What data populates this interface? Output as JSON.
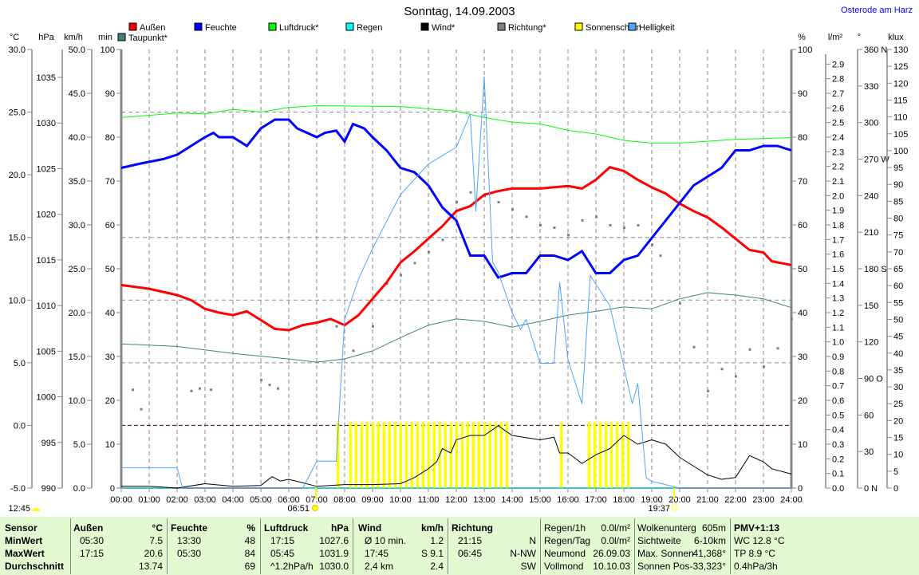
{
  "header": {
    "title": "Sonntag, 14.09.2003",
    "location": "Osterode am Harz"
  },
  "legend": [
    {
      "label": "Außen",
      "color": "#ff0000"
    },
    {
      "label": "Feuchte",
      "color": "#0000ff"
    },
    {
      "label": "Luftdruck*",
      "color": "#00ff00"
    },
    {
      "label": "Regen",
      "color": "#00ffff"
    },
    {
      "label": "Wind*",
      "color": "#000000"
    },
    {
      "label": "Richtung*",
      "color": "#808080"
    },
    {
      "label": "Sonnenschein",
      "color": "#ffff00"
    },
    {
      "label": "Helligkeit",
      "color": "#4da6ff"
    },
    {
      "label": "Taupunkt*",
      "color": "#408080"
    }
  ],
  "markers": {
    "moon": "12:45",
    "sunrise": "06:51",
    "sunset": "19:37",
    "moon_icon": "half-moon-icon",
    "sun_icon": "sun-icon"
  },
  "chart_data": {
    "type": "line",
    "title": "Sonntag, 14.09.2003",
    "xlabel": "",
    "xlim": [
      0,
      24
    ],
    "x_ticks": [
      "00:00",
      "01:00",
      "02:00",
      "03:00",
      "04:00",
      "05:00",
      "06:00",
      "07:00",
      "08:00",
      "09:00",
      "10:00",
      "11:00",
      "12:00",
      "13:00",
      "14:00",
      "15:00",
      "16:00",
      "17:00",
      "18:00",
      "19:00",
      "20:00",
      "21:00",
      "22:00",
      "23:00",
      "24:00"
    ],
    "grid": true,
    "axes": {
      "temp": {
        "unit": "°C",
        "range": [
          -5,
          30
        ],
        "ticks": [
          "30.0",
          "25.0",
          "20.0",
          "15.0",
          "10.0",
          "5.0",
          "0.0",
          "-5.0"
        ],
        "values": [
          30,
          25,
          20,
          15,
          10,
          5,
          0,
          -5
        ]
      },
      "pressure": {
        "unit": "hPa",
        "range": [
          990,
          1038.06
        ],
        "ticks": [
          "1035",
          "1030",
          "1025",
          "1020",
          "1015",
          "1010",
          "1005",
          "1000",
          "995",
          "990"
        ],
        "values": [
          1035,
          1030,
          1025,
          1020,
          1015,
          1010,
          1005,
          1000,
          995,
          990
        ]
      },
      "wind": {
        "unit": "km/h",
        "range": [
          0,
          50
        ],
        "ticks": [
          "50.0",
          "45.0",
          "40.0",
          "35.0",
          "30.0",
          "25.0",
          "20.0",
          "15.0",
          "10.0",
          "5.0",
          "0.0"
        ],
        "values": [
          50,
          45,
          40,
          35,
          30,
          25,
          20,
          15,
          10,
          5,
          0
        ]
      },
      "sun": {
        "unit": "min",
        "range": [
          0,
          100
        ],
        "ticks": [
          "100",
          "90",
          "80",
          "70",
          "60",
          "50",
          "40",
          "30",
          "20",
          "10",
          "0"
        ],
        "values": [
          100,
          90,
          80,
          70,
          60,
          50,
          40,
          30,
          20,
          10,
          0
        ]
      },
      "humidity": {
        "unit": "%",
        "range": [
          0,
          100
        ],
        "ticks": [
          "100",
          "90",
          "80",
          "70",
          "60",
          "50",
          "40",
          "30",
          "20",
          "10",
          "0"
        ],
        "values": [
          100,
          90,
          80,
          70,
          60,
          50,
          40,
          30,
          20,
          10,
          0
        ]
      },
      "rain": {
        "unit": "l/m²",
        "range": [
          0,
          3
        ],
        "ticks": [
          "2.9",
          "2.8",
          "2.7",
          "2.6",
          "2.5",
          "2.4",
          "2.3",
          "2.2",
          "2.1",
          "2.0",
          "1.9",
          "1.8",
          "1.7",
          "1.6",
          "1.5",
          "1.4",
          "1.3",
          "1.2",
          "1.1",
          "1.0",
          "0.9",
          "0.8",
          "0.7",
          "0.6",
          "0.5",
          "0.4",
          "0.3",
          "0.2",
          "0.1",
          "0.0"
        ],
        "values": [
          2.9,
          2.8,
          2.7,
          2.6,
          2.5,
          2.4,
          2.3,
          2.2,
          2.1,
          2.0,
          1.9,
          1.8,
          1.7,
          1.6,
          1.5,
          1.4,
          1.3,
          1.2,
          1.1,
          1.0,
          0.9,
          0.8,
          0.7,
          0.6,
          0.5,
          0.4,
          0.3,
          0.2,
          0.1,
          0
        ]
      },
      "direction": {
        "unit": "°",
        "range": [
          0,
          360
        ],
        "ticks": [
          "360 N",
          "330",
          "300",
          "270 W",
          "240",
          "210",
          "180 S",
          "150",
          "120",
          "90  O",
          "60",
          "30",
          "0    N"
        ],
        "values": [
          360,
          330,
          300,
          270,
          240,
          210,
          180,
          150,
          120,
          90,
          60,
          30,
          0
        ]
      },
      "light": {
        "unit": "klux",
        "range": [
          0,
          130
        ],
        "ticks": [
          "130",
          "125",
          "120",
          "115",
          "110",
          "105",
          "100",
          "95",
          "90",
          "85",
          "80",
          "75",
          "70",
          "65",
          "60",
          "55",
          "50",
          "45",
          "40",
          "35",
          "30",
          "25",
          "20",
          "15",
          "10",
          "5",
          "0"
        ],
        "values": [
          130,
          125,
          120,
          115,
          110,
          105,
          100,
          95,
          90,
          85,
          80,
          75,
          70,
          65,
          60,
          55,
          50,
          45,
          40,
          35,
          30,
          25,
          20,
          15,
          10,
          5,
          0
        ]
      }
    },
    "series": [
      {
        "name": "Außen",
        "axis": "temp",
        "color": "#ff0000",
        "x": [
          0,
          1,
          2,
          2.5,
          3,
          3.5,
          4,
          4.5,
          5,
          5.5,
          6,
          6.5,
          7,
          7.5,
          8,
          8.5,
          9,
          9.5,
          10,
          10.5,
          11,
          11.5,
          12,
          12.5,
          13,
          13.5,
          14,
          15,
          16,
          16.5,
          17,
          17.5,
          18,
          18.5,
          19,
          19.5,
          20,
          20.5,
          21,
          21.5,
          22,
          22.5,
          23,
          23.3,
          24
        ],
        "values": [
          11.2,
          10.9,
          10.4,
          10.0,
          9.3,
          9.0,
          8.8,
          9.1,
          8.4,
          7.7,
          7.6,
          8.0,
          8.2,
          8.5,
          8.0,
          8.8,
          10.1,
          11.4,
          13.0,
          13.9,
          14.9,
          15.9,
          17.1,
          17.5,
          18.4,
          18.7,
          18.9,
          18.9,
          19.1,
          18.9,
          19.6,
          20.6,
          20.3,
          19.6,
          19.0,
          18.5,
          17.7,
          17.1,
          16.6,
          15.8,
          14.9,
          14.0,
          13.8,
          13.1,
          12.8
        ]
      },
      {
        "name": "Feuchte",
        "axis": "humidity",
        "color": "#0000ff",
        "x": [
          0,
          0.7,
          1.5,
          2,
          2.5,
          3,
          3.3,
          3.5,
          4,
          4.5,
          5,
          5.5,
          6,
          6.3,
          7,
          7.3,
          7.7,
          8,
          8.3,
          8.7,
          9,
          9.5,
          10,
          10.5,
          11,
          11.5,
          12,
          12.5,
          13,
          13.5,
          14,
          14.5,
          15,
          15.5,
          16,
          16.5,
          17,
          17.5,
          18,
          18.5,
          19,
          19.5,
          20,
          20.5,
          21,
          21.5,
          22,
          22.5,
          23,
          23.5,
          24
        ],
        "values": [
          73,
          74,
          75,
          76,
          78,
          80,
          81,
          80,
          80,
          78,
          82,
          84,
          84,
          82,
          80,
          81,
          81.5,
          79,
          83,
          82,
          80,
          77,
          73,
          72,
          69,
          64,
          61,
          53,
          53,
          48,
          49,
          49,
          53,
          53,
          52,
          54,
          49,
          49,
          52,
          53,
          57,
          61,
          65,
          69,
          71,
          73,
          77,
          77,
          78,
          78,
          77
        ]
      },
      {
        "name": "Luftdruck*",
        "axis": "pressure",
        "color": "#00ff00",
        "x": [
          0,
          2,
          3,
          4,
          5,
          6,
          7,
          10,
          12,
          13,
          14,
          15,
          16,
          17,
          18,
          19,
          20,
          21,
          22,
          24
        ],
        "values": [
          1030.6,
          1031.1,
          1031.0,
          1031.5,
          1031.2,
          1031.7,
          1031.9,
          1031.8,
          1031.3,
          1030.6,
          1030.1,
          1029.9,
          1029.2,
          1028.8,
          1028.1,
          1027.8,
          1027.8,
          1028.0,
          1028.2,
          1028.4
        ]
      },
      {
        "name": "Taupunkt*",
        "axis": "temp",
        "color": "#408080",
        "x": [
          0,
          2,
          4,
          6,
          7,
          8,
          9,
          10,
          11,
          12,
          13,
          14,
          15,
          16,
          17,
          18,
          19,
          20,
          21,
          22,
          23,
          24
        ],
        "values": [
          6.5,
          6.3,
          5.75,
          5.3,
          5.05,
          5.3,
          5.95,
          7.0,
          8.0,
          8.5,
          8.3,
          7.85,
          8.3,
          8.8,
          9.1,
          9.45,
          9.3,
          10.1,
          10.6,
          10.4,
          10.1,
          9.4
        ]
      },
      {
        "name": "Regen",
        "axis": "rain",
        "color": "#00ffff",
        "x": [
          0,
          24
        ],
        "values": [
          0,
          0
        ]
      },
      {
        "name": "Wind*",
        "axis": "wind",
        "color": "#000000",
        "x": [
          0,
          1,
          2,
          3,
          4,
          5,
          5.4,
          5.7,
          6,
          7,
          8,
          9,
          10,
          10.5,
          11,
          11.3,
          11.5,
          11.8,
          12,
          12.5,
          13,
          13.5,
          14,
          15,
          15.5,
          15.7,
          16,
          16.5,
          17,
          17.5,
          18,
          18.5,
          19,
          19.5,
          20,
          20.5,
          21,
          21.5,
          22,
          22.5,
          23,
          23.3,
          24
        ],
        "values": [
          0.2,
          0.2,
          0,
          0.5,
          0.2,
          0.3,
          1.3,
          0.8,
          1.0,
          0.2,
          0.4,
          0.4,
          0.5,
          1.2,
          2.2,
          3.0,
          4.5,
          4.0,
          5.5,
          6.0,
          6.0,
          7.1,
          6.0,
          5.5,
          5.8,
          4.0,
          4.0,
          2.8,
          3.8,
          4.5,
          6.0,
          5.0,
          5.5,
          5.0,
          3.5,
          2.5,
          1.5,
          1.0,
          1.2,
          3.7,
          3.0,
          2.2,
          1.6
        ]
      },
      {
        "name": "Helligkeit",
        "axis": "light",
        "color": "#4da6ff",
        "x": [
          0,
          2,
          2.2,
          6.5,
          7,
          7.7,
          8,
          8.5,
          9,
          10,
          11,
          12,
          12.5,
          12.7,
          13,
          13.3,
          13.5,
          14,
          14.3,
          14.5,
          15,
          15.5,
          15.7,
          16,
          16.5,
          16.8,
          17.5,
          18,
          18.3,
          18.5,
          18.8,
          19,
          20,
          24
        ],
        "values": [
          6,
          6,
          0,
          0,
          8,
          8,
          50,
          62,
          71,
          87,
          96,
          101,
          111,
          82,
          122,
          67,
          64,
          52,
          47,
          50,
          37,
          37,
          61,
          38,
          25,
          63,
          54,
          36,
          25,
          31,
          3,
          2,
          0,
          0
        ]
      }
    ],
    "direction_points": {
      "name": "Richtung*",
      "axis": "direction",
      "color": "#808080",
      "x": [
        0.4,
        0.7,
        2.5,
        2.8,
        3.2,
        5,
        5.3,
        5.6,
        7.7,
        8.3,
        9,
        9.5,
        10,
        10.5,
        11,
        11.5,
        12,
        12.5,
        13,
        13.5,
        14,
        14.5,
        15,
        15.5,
        16,
        16.5,
        17,
        17.5,
        18,
        18.5,
        19,
        19.3,
        20,
        20.5,
        21,
        21.5,
        22,
        22.5,
        23,
        23.5,
        24
      ],
      "values": [
        81,
        65,
        80,
        82,
        81,
        89,
        85,
        82,
        133,
        113,
        133,
        168,
        175,
        185,
        194,
        204,
        235,
        243,
        240,
        235,
        229,
        223,
        216,
        214,
        208,
        220,
        223,
        216,
        214,
        216,
        200,
        191,
        152,
        116,
        80,
        98,
        92,
        114,
        100,
        115,
        139
      ]
    },
    "sunshine": {
      "name": "Sonnenschein",
      "axis": "sun",
      "color": "#ffff00",
      "value": 15,
      "x": [
        7.75,
        8.2,
        8.4,
        8.6,
        8.8,
        9.0,
        9.2,
        9.4,
        9.6,
        9.8,
        10.0,
        10.2,
        10.4,
        10.6,
        10.8,
        11.0,
        11.2,
        11.4,
        11.6,
        11.8,
        12.0,
        12.2,
        12.4,
        12.6,
        12.8,
        13.0,
        13.2,
        13.4,
        13.6,
        13.8,
        15.75,
        16.75,
        16.95,
        17.15,
        17.35,
        17.55,
        17.75,
        17.95,
        18.15
      ]
    }
  },
  "table": [
    {
      "rows": [
        [
          "Sensor",
          ""
        ],
        [
          "MinWert",
          ""
        ],
        [
          "MaxWert",
          ""
        ],
        [
          "Durchschnitt",
          ""
        ]
      ],
      "bold": "all"
    },
    {
      "rows": [
        [
          "Außen",
          "°C"
        ],
        [
          "05:30",
          "7.5"
        ],
        [
          "17:15",
          "20.6"
        ],
        [
          "",
          "13.74"
        ]
      ],
      "bold": "header"
    },
    {
      "rows": [
        [
          "Feuchte",
          "%"
        ],
        [
          "13:30",
          "48"
        ],
        [
          "05:30",
          "84"
        ],
        [
          "",
          "69"
        ]
      ],
      "bold": "header"
    },
    {
      "rows": [
        [
          "Luftdruck",
          "hPa"
        ],
        [
          "17:15",
          "1027.6"
        ],
        [
          "05:45",
          "1031.9"
        ],
        [
          "^1.2hPa/h",
          "1030.0"
        ]
      ],
      "bold": "header"
    },
    {
      "rows": [
        [
          "Wind",
          "km/h"
        ],
        [
          "Ø 10 min.",
          "1.2"
        ],
        [
          "17:45",
          "S 9.1"
        ],
        [
          "2,4 km",
          "2.4"
        ]
      ],
      "bold": "header"
    },
    {
      "rows": [
        [
          "Richtung",
          ""
        ],
        [
          "21:15",
          "N"
        ],
        [
          "06:45",
          "N-NW"
        ],
        [
          "",
          "SW"
        ]
      ],
      "bold": "header"
    },
    {
      "rows": [
        [
          "Regen/1h",
          "0.0l/m²"
        ],
        [
          "Regen/Tag",
          "0.0l/m²"
        ],
        [
          "Neumond",
          "26.09.03"
        ],
        [
          "Vollmond",
          "10.10.03"
        ]
      ],
      "bold": "none"
    },
    {
      "rows": [
        [
          "Wolkenunterg",
          "605m"
        ],
        [
          "Sichtweite",
          "6-10km"
        ],
        [
          "Max. Sonnen",
          "41,368°"
        ],
        [
          "Sonnen Pos",
          "-33,323°"
        ]
      ],
      "bold": "none"
    },
    {
      "rows": [
        [
          "PMV+1:13",
          ""
        ],
        [
          "WC 12.8 °C",
          ""
        ],
        [
          "TP 8.9 °C",
          ""
        ],
        [
          "0.4hPa/3h",
          ""
        ]
      ],
      "bold": "header"
    }
  ]
}
